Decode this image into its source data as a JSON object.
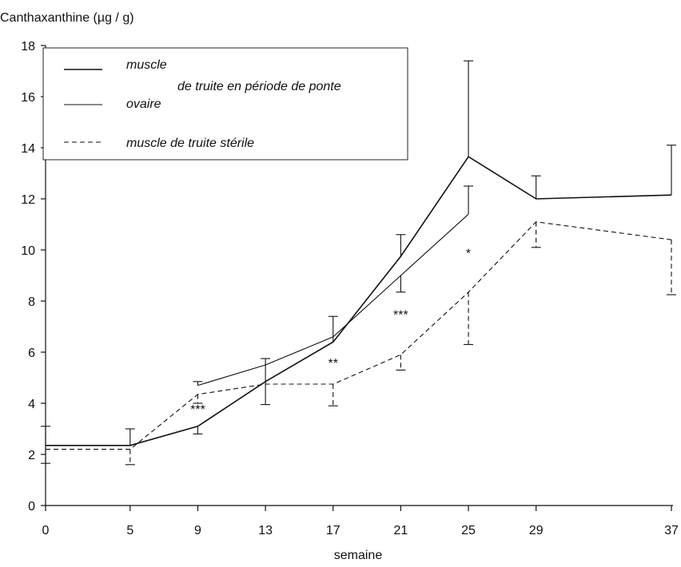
{
  "chart_data": {
    "type": "line",
    "ylabel": "Canthaxanthine (µg / g)",
    "xlabel": "semaine",
    "x_ticks": [
      0,
      5,
      9,
      13,
      17,
      21,
      25,
      29,
      37
    ],
    "y_ticks": [
      0,
      2,
      4,
      6,
      8,
      10,
      12,
      14,
      16,
      18
    ],
    "xlim": [
      0,
      37
    ],
    "ylim": [
      0,
      18
    ],
    "grid": false,
    "legend_position": "top-left",
    "legend": {
      "items": [
        "muscle",
        "ovaire",
        "muscle de truite stérile"
      ],
      "group_label": "de truite en période de ponte"
    },
    "series": [
      {
        "name": "muscle",
        "style": "solid",
        "line_width": 1.6,
        "x": [
          0,
          5,
          9,
          13,
          17,
          21,
          25,
          29,
          37
        ],
        "y": [
          2.35,
          2.35,
          3.1,
          4.85,
          6.4,
          9.75,
          13.65,
          12.0,
          12.15
        ],
        "error_high": [
          3.1,
          3.0,
          null,
          5.75,
          7.4,
          10.6,
          17.4,
          12.9,
          14.1
        ],
        "error_low": [
          null,
          null,
          2.8,
          3.95,
          null,
          null,
          null,
          null,
          null
        ]
      },
      {
        "name": "ovaire",
        "style": "solid",
        "line_width": 1.1,
        "x": [
          9,
          13,
          17,
          21,
          25
        ],
        "y": [
          4.7,
          5.5,
          6.6,
          9.0,
          11.4
        ],
        "error_high": [
          4.85,
          null,
          null,
          null,
          12.5
        ],
        "error_low": [
          null,
          null,
          null,
          8.35,
          null
        ]
      },
      {
        "name": "muscle de truite stérile",
        "style": "dashed",
        "line_width": 1.1,
        "x": [
          0,
          5,
          9,
          13,
          17,
          21,
          25,
          29,
          37
        ],
        "y": [
          2.2,
          2.2,
          4.35,
          4.75,
          4.75,
          5.9,
          8.35,
          11.1,
          10.4
        ],
        "error_high": [
          null,
          null,
          null,
          null,
          null,
          null,
          null,
          null,
          null
        ],
        "error_low": [
          1.65,
          1.6,
          4.0,
          null,
          3.9,
          5.3,
          6.3,
          10.1,
          8.25
        ]
      }
    ],
    "annotations": [
      {
        "text": "***",
        "x": 9,
        "y": 3.6
      },
      {
        "text": "**",
        "x": 17,
        "y": 5.4
      },
      {
        "text": "***",
        "x": 21,
        "y": 7.3
      },
      {
        "text": "*",
        "x": 25,
        "y": 9.7
      }
    ]
  }
}
